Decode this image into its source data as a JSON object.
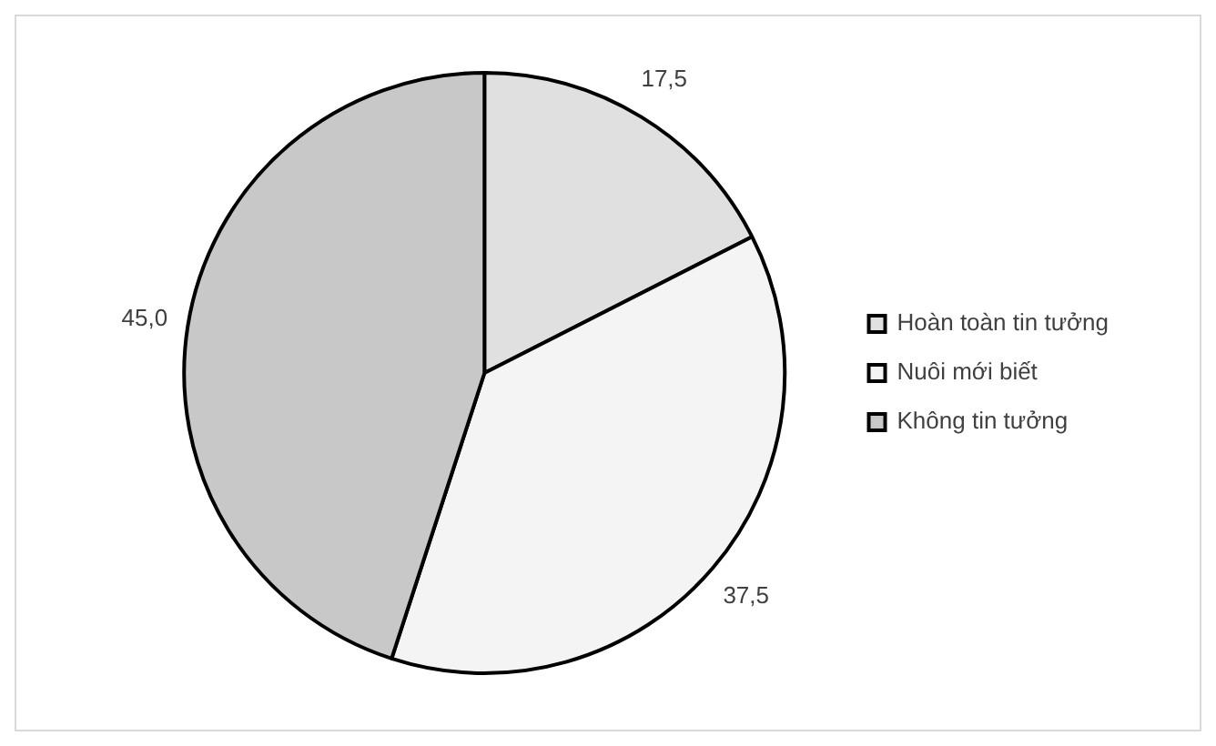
{
  "chart_data": {
    "type": "pie",
    "categories": [
      "Hoàn toàn tin tưởng",
      "Nuôi mới biết",
      "Không tin tưởng"
    ],
    "values": [
      17.5,
      37.5,
      45.0
    ],
    "value_labels": [
      "17,5",
      "37,5",
      "45,0"
    ],
    "colors": [
      "#e0e0e0",
      "#f4f4f4",
      "#c8c8c8"
    ],
    "legend": "right"
  }
}
